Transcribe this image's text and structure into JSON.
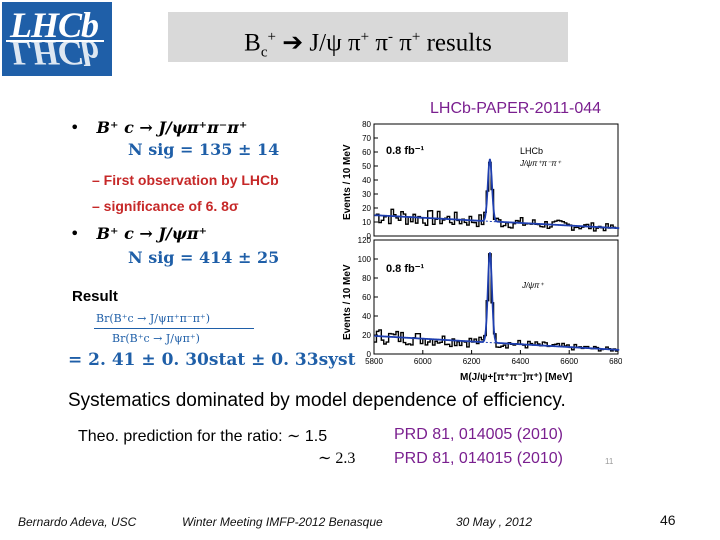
{
  "logo": {
    "text": "LHCb"
  },
  "title": {
    "prefix": "B",
    "sub": "c",
    "sup": "+",
    "arrow": "➔",
    "rest": " J/ψ π",
    "p1": "+",
    "pi2": " π",
    "m2": "-",
    "pi3": " π",
    "p3": "+",
    "suffix": " results"
  },
  "paper_ref": "LHCb-PAPER-2011-044",
  "bullets": {
    "dot": "•",
    "decay1": "B⁺ c → J/ψπ⁺π⁻π⁺",
    "nsig1": "N sig = 135 ± 14",
    "sub1": "– First observation by LHCb",
    "sub2": "– significance of 6. 8σ",
    "decay2": "B⁺ c → J/ψπ⁺",
    "nsig2": "N sig = 414 ± 25"
  },
  "result": {
    "heading": "Result",
    "numerator": "Br(B⁺c → J/ψπ⁺π⁻π⁺)",
    "denominator": "Br(B⁺c → J/ψπ⁺)",
    "value": "= 2. 41 ± 0. 30stat ± 0. 33syst"
  },
  "plots": {
    "top": {
      "lumi": "0.8 fb⁻¹",
      "exp": "LHCb",
      "label": "J/ψπ⁺π⁻π⁺",
      "ylabel": "Events / 10 MeV",
      "yticks": [
        "0",
        "10",
        "20",
        "30",
        "40",
        "50",
        "60",
        "70",
        "80"
      ]
    },
    "bottom": {
      "lumi": "0.8 fb⁻¹",
      "label": "J/ψπ⁺",
      "ylabel": "Events / 10 MeV",
      "yticks": [
        "0",
        "20",
        "40",
        "60",
        "80",
        "100",
        "120"
      ]
    },
    "xticks": [
      "5800",
      "6000",
      "6200",
      "6400",
      "6600",
      "6800"
    ],
    "xlabel": "M(J/ψ+[π⁺π⁻]π⁺) [MeV]"
  },
  "systematics": "Systematics dominated by model dependence of efficiency.",
  "theory": {
    "label": "Theo. prediction for the ratio: ∼ 1.5",
    "second": "∼ 2.3",
    "ref1": "PRD 81, 014005 (2010)",
    "ref2": "PRD 81, 014015 (2010)",
    "small_page": "11"
  },
  "footer": {
    "author": "Bernardo Adeva, USC",
    "meeting": "Winter Meeting IMFP-2012 Benasque",
    "date": "30 May , 2012",
    "page": "46"
  }
}
